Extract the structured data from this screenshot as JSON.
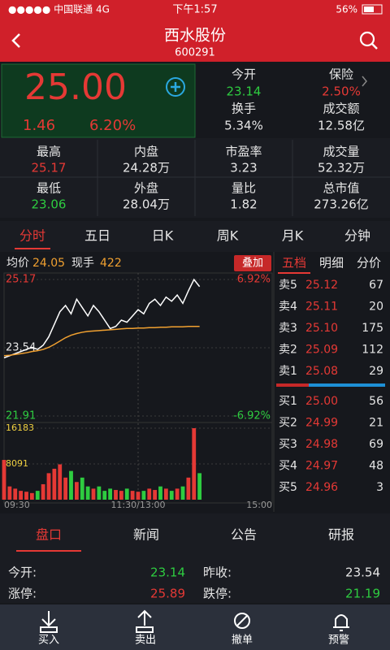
{
  "status": {
    "carrier": "●●●●● 中国联通",
    "network": "4G",
    "time": "下午1:57",
    "battery": "56%"
  },
  "header": {
    "title": "西水股份",
    "code": "600291"
  },
  "quote": {
    "price": "25.00",
    "change": "1.46",
    "change_pct": "6.20%"
  },
  "summary": [
    {
      "label": "今开",
      "value": "23.14",
      "color": "#2ecc40"
    },
    {
      "label": "保险",
      "value": "2.50%",
      "color": "#e53935"
    },
    {
      "label": "换手",
      "value": "5.34%",
      "color": "#e6e6e6"
    },
    {
      "label": "成交额",
      "value": "12.58亿",
      "color": "#e6e6e6"
    }
  ],
  "stats": [
    [
      {
        "label": "最高",
        "value": "25.17",
        "color": "#e53935"
      },
      {
        "label": "内盘",
        "value": "24.28万",
        "color": "#e6e6e6"
      },
      {
        "label": "市盈率",
        "value": "3.23",
        "color": "#e6e6e6"
      },
      {
        "label": "成交量",
        "value": "52.32万",
        "color": "#e6e6e6"
      }
    ],
    [
      {
        "label": "最低",
        "value": "23.06",
        "color": "#2ecc40"
      },
      {
        "label": "外盘",
        "value": "28.04万",
        "color": "#e6e6e6"
      },
      {
        "label": "量比",
        "value": "1.82",
        "color": "#e6e6e6"
      },
      {
        "label": "总市值",
        "value": "273.26亿",
        "color": "#e6e6e6"
      }
    ]
  ],
  "tabs": [
    "分时",
    "五日",
    "日K",
    "周K",
    "月K",
    "分钟"
  ],
  "intraday": {
    "avg_label": "均价",
    "avg_value": "24.05",
    "hand_label": "现手",
    "hand_value": "422",
    "overlay": "叠加",
    "ylim": [
      21.91,
      25.17
    ],
    "yticks": [
      21.91,
      23.54,
      25.17
    ],
    "pct_labels": [
      "6.92%",
      "-6.92%"
    ],
    "vlim": [
      0,
      16183
    ],
    "vticks": [
      8091,
      16183
    ],
    "xticks": [
      "09:30",
      "11:30/13:00",
      "15:00"
    ],
    "price": [
      23.3,
      23.35,
      23.4,
      23.45,
      23.5,
      23.55,
      23.5,
      23.6,
      23.8,
      24.1,
      24.4,
      24.55,
      24.35,
      24.7,
      24.5,
      24.3,
      24.55,
      24.4,
      24.2,
      24.0,
      24.05,
      24.2,
      24.15,
      24.3,
      24.45,
      24.35,
      24.6,
      24.7,
      24.55,
      24.75,
      24.65,
      24.8,
      24.6,
      24.9,
      25.17,
      25.0
    ],
    "avg": [
      23.35,
      23.36,
      23.38,
      23.4,
      23.42,
      23.45,
      23.47,
      23.5,
      23.55,
      23.62,
      23.7,
      23.78,
      23.84,
      23.88,
      23.91,
      23.93,
      23.94,
      23.95,
      23.96,
      23.97,
      23.98,
      23.99,
      24.0,
      24.0,
      24.01,
      24.01,
      24.02,
      24.02,
      24.03,
      24.03,
      24.04,
      24.04,
      24.04,
      24.05,
      24.05,
      24.05
    ],
    "volume": [
      9000,
      3000,
      2500,
      2000,
      1800,
      1500,
      2000,
      3500,
      6000,
      7000,
      8000,
      5000,
      6500,
      4000,
      5000,
      3000,
      2500,
      3000,
      2000,
      2500,
      2200,
      2000,
      2500,
      2000,
      1800,
      2000,
      2500,
      2200,
      3000,
      2500,
      2000,
      2500,
      3000,
      5000,
      16183,
      6000
    ]
  },
  "book": {
    "tabs": [
      "五档",
      "明细",
      "分价"
    ],
    "asks": [
      {
        "label": "卖5",
        "price": "25.12",
        "volume": "67"
      },
      {
        "label": "卖4",
        "price": "25.11",
        "volume": "20"
      },
      {
        "label": "卖3",
        "price": "25.10",
        "volume": "175"
      },
      {
        "label": "卖2",
        "price": "25.09",
        "volume": "112"
      },
      {
        "label": "卖1",
        "price": "25.08",
        "volume": "29"
      }
    ],
    "bids": [
      {
        "label": "买1",
        "price": "25.00",
        "volume": "56"
      },
      {
        "label": "买2",
        "price": "24.99",
        "volume": "21"
      },
      {
        "label": "买3",
        "price": "24.98",
        "volume": "69"
      },
      {
        "label": "买4",
        "price": "24.97",
        "volume": "48"
      },
      {
        "label": "买5",
        "price": "24.96",
        "volume": "3"
      }
    ]
  },
  "info_tabs": [
    "盘口",
    "新闻",
    "公告",
    "研报"
  ],
  "info": [
    {
      "label": "今开:",
      "value": "23.14",
      "color": "#2ecc40"
    },
    {
      "label": "昨收:",
      "value": "23.54",
      "color": "#e6e6e6"
    },
    {
      "label": "涨停:",
      "value": "25.89",
      "color": "#e53935"
    },
    {
      "label": "跌停:",
      "value": "21.19",
      "color": "#2ecc40"
    }
  ],
  "toolbar": [
    "买入",
    "卖出",
    "撤单",
    "预警"
  ]
}
